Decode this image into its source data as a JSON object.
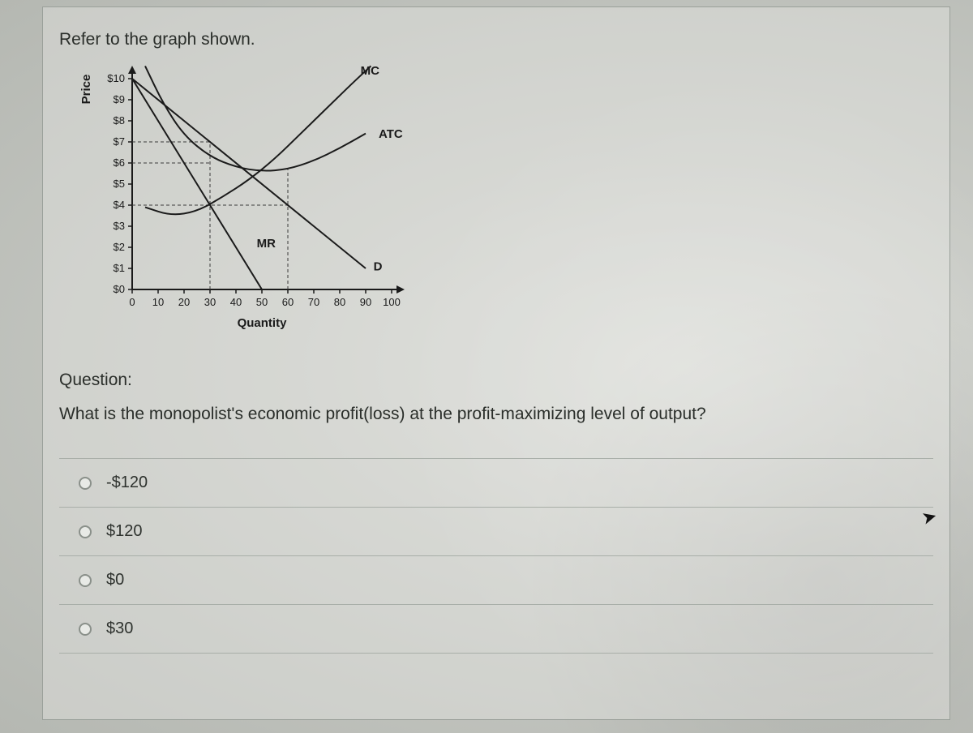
{
  "instruction": "Refer to the graph shown.",
  "question_label": "Question:",
  "question_text": "What is the monopolist's economic profit(loss) at the profit-maximizing level of output?",
  "options": [
    "-$120",
    "$120",
    "$0",
    "$30"
  ],
  "chart": {
    "type": "line",
    "y_label": "Price",
    "x_label": "Quantity",
    "y_ticks": [
      "$10",
      "$9",
      "$8",
      "$7",
      "$6",
      "$5",
      "$4",
      "$3",
      "$2",
      "$1",
      "$0"
    ],
    "x_ticks": [
      "0",
      "10",
      "20",
      "30",
      "40",
      "50",
      "60",
      "70",
      "80",
      "90",
      "100"
    ],
    "xlim": [
      0,
      100
    ],
    "ylim": [
      0,
      10
    ],
    "stroke_color": "#1a1a1a",
    "dash_color": "#3a3a3a",
    "background_color": "transparent",
    "tick_fontsize": 13,
    "label_fontsize": 15,
    "curves": {
      "MC": {
        "label": "MC",
        "label_pos": [
          88,
          10.2
        ],
        "points": [
          [
            5,
            3.9
          ],
          [
            15,
            3.5
          ],
          [
            25,
            3.7
          ],
          [
            35,
            4.4
          ],
          [
            45,
            5.2
          ],
          [
            55,
            6.2
          ],
          [
            65,
            7.4
          ],
          [
            75,
            8.6
          ],
          [
            85,
            9.8
          ],
          [
            92,
            10.6
          ]
        ]
      },
      "ATC": {
        "label": "ATC",
        "label_pos": [
          95,
          7.2
        ],
        "points": [
          [
            5,
            10.6
          ],
          [
            12,
            8.8
          ],
          [
            20,
            7.3
          ],
          [
            30,
            6.3
          ],
          [
            40,
            5.8
          ],
          [
            50,
            5.6
          ],
          [
            60,
            5.7
          ],
          [
            70,
            6.1
          ],
          [
            80,
            6.7
          ],
          [
            90,
            7.4
          ]
        ]
      },
      "D": {
        "label": "D",
        "label_pos": [
          93,
          0.9
        ],
        "points": [
          [
            0,
            10
          ],
          [
            90,
            1
          ]
        ]
      },
      "MR": {
        "label": "MR",
        "label_pos": [
          48,
          2.0
        ],
        "points": [
          [
            0,
            10
          ],
          [
            50,
            0
          ]
        ]
      }
    },
    "guide_lines": [
      {
        "type": "h",
        "y": 7,
        "x0": 0,
        "x1": 30
      },
      {
        "type": "h",
        "y": 6,
        "x0": 0,
        "x1": 30
      },
      {
        "type": "h",
        "y": 4,
        "x0": 0,
        "x1": 60
      },
      {
        "type": "v",
        "x": 30,
        "y0": 0,
        "y1": 7
      },
      {
        "type": "v",
        "x": 60,
        "y0": 0,
        "y1": 5.7
      }
    ]
  }
}
